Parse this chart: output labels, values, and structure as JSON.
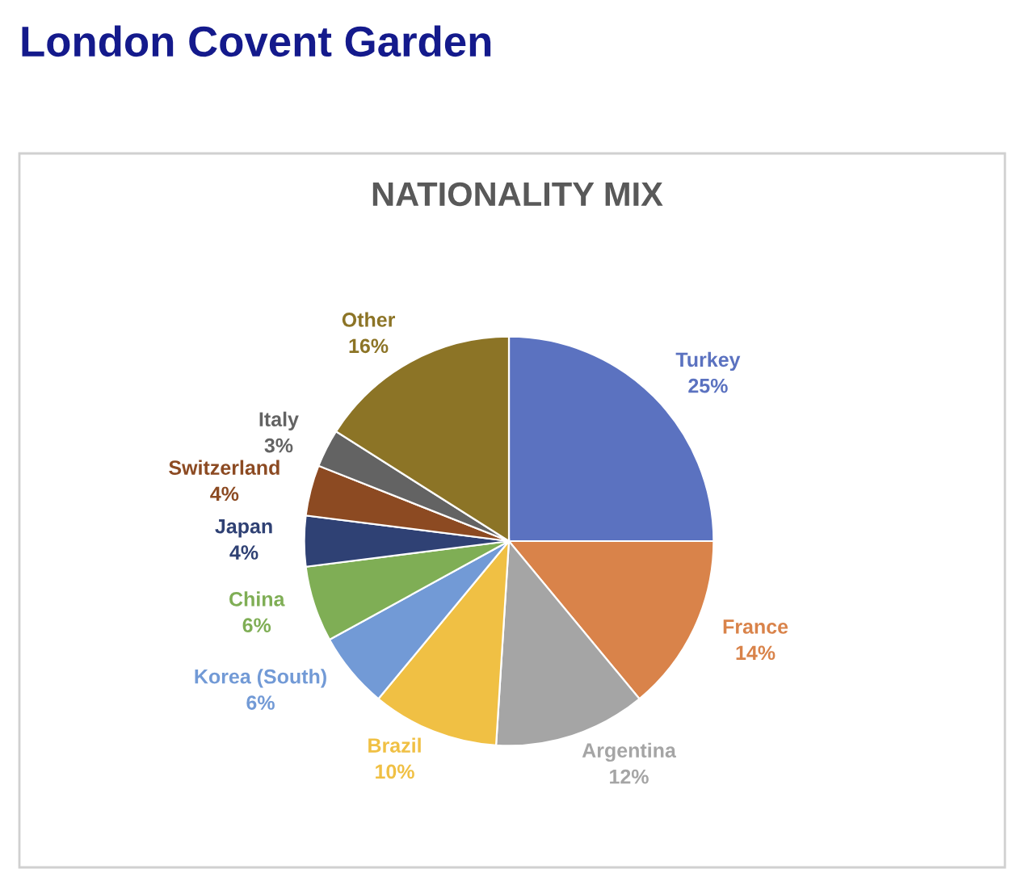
{
  "chart_data": {
    "type": "pie",
    "title": "London Covent Garden",
    "subtitle": "NATIONALITY MIX",
    "categories": [
      "Turkey",
      "France",
      "Argentina",
      "Brazil",
      "Korea (South)",
      "China",
      "Japan",
      "Switzerland",
      "Italy",
      "Other"
    ],
    "values": [
      25,
      14,
      12,
      10,
      6,
      6,
      4,
      4,
      3,
      16
    ],
    "value_labels": [
      "25%",
      "14%",
      "12%",
      "10%",
      "6%",
      "6%",
      "4%",
      "4%",
      "3%",
      "16%"
    ],
    "colors": [
      "#5b72c0",
      "#d9834a",
      "#a5a5a5",
      "#f0c044",
      "#729ad6",
      "#7fae55",
      "#2f4174",
      "#8c4a22",
      "#636363",
      "#8c7426"
    ]
  }
}
